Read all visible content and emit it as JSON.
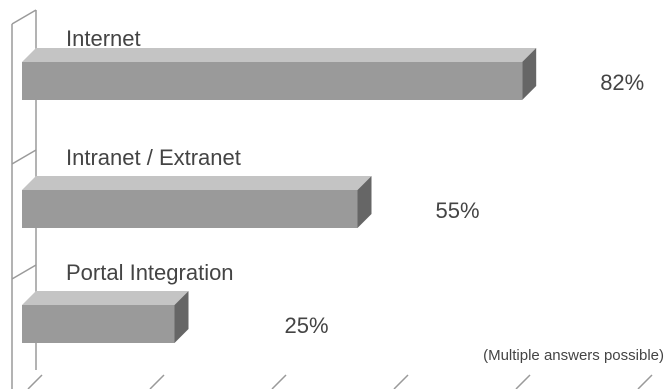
{
  "chart_data": {
    "type": "bar",
    "orientation": "horizontal",
    "style": "3d",
    "categories": [
      "Internet",
      "Intranet / Extranet",
      "Portal Integration"
    ],
    "values": [
      82,
      55,
      25
    ],
    "value_labels": [
      "82%",
      "55%",
      "25%"
    ],
    "xlim": [
      0,
      100
    ],
    "grid": false,
    "annotation": "(Multiple answers possible)"
  },
  "colors": {
    "bar_front": "#9a9a9a",
    "bar_top": "#c4c4c4",
    "bar_side": "#666666",
    "axis": "#9a9a9a",
    "text": "#444444"
  }
}
